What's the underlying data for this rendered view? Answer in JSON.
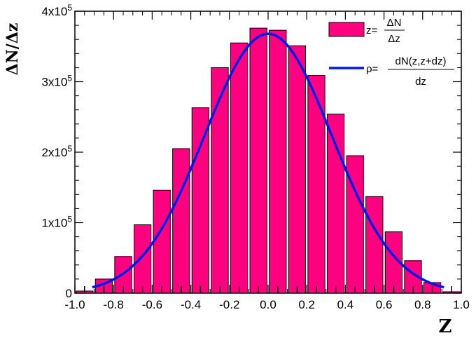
{
  "chart_data": {
    "type": "bar",
    "title": "",
    "xlabel": "Z",
    "ylabel": "ΔN/Δz",
    "xlim": [
      -1.0,
      1.0
    ],
    "ylim": [
      0,
      400000
    ],
    "x_ticks": [
      -1.0,
      -0.8,
      -0.6,
      -0.4,
      -0.2,
      0.0,
      0.2,
      0.4,
      0.6,
      0.8,
      1.0
    ],
    "x_tick_labels": [
      "-1.0",
      "-0.8",
      "-0.6",
      "-0.4",
      "-0.2",
      "0.0",
      "0.2",
      "0.4",
      "0.6",
      "0.8",
      "1.0"
    ],
    "y_ticks": [
      0,
      100000,
      200000,
      300000,
      400000
    ],
    "y_tick_labels": [
      {
        "base": "0",
        "exp": ""
      },
      {
        "base": "1x10",
        "exp": "5"
      },
      {
        "base": "2x10",
        "exp": "5"
      },
      {
        "base": "3x10",
        "exp": "5"
      },
      {
        "base": "4x10",
        "exp": "5"
      }
    ],
    "bin_width": 0.1,
    "bars": {
      "name": "z=ΔN/Δz",
      "color": "#FF0080",
      "x": [
        -0.95,
        -0.85,
        -0.75,
        -0.65,
        -0.55,
        -0.45,
        -0.35,
        -0.25,
        -0.15,
        -0.05,
        0.05,
        0.15,
        0.25,
        0.35,
        0.45,
        0.55,
        0.65,
        0.75,
        0.85,
        0.95
      ],
      "values": [
        3000,
        20000,
        52000,
        97000,
        146000,
        205000,
        263000,
        320000,
        355000,
        376000,
        373000,
        351000,
        309000,
        254000,
        195000,
        137000,
        87000,
        46000,
        15000,
        2000
      ]
    },
    "curve": {
      "name": "ρ=dN(z,z+dz)/dz",
      "color": "#0018E8",
      "peak": 368000,
      "center": 0.0,
      "sigma": 0.33
    },
    "legend": {
      "position": "top-right",
      "entries": [
        {
          "prefix": "z=",
          "numerator": "ΔN",
          "denominator": "Δz"
        },
        {
          "prefix": "ρ=",
          "numerator": "dN(z,z+dz)",
          "denominator": "dz"
        }
      ]
    }
  }
}
